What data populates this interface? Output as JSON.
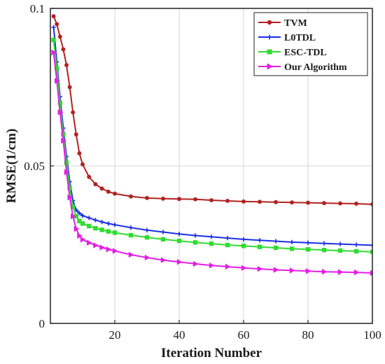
{
  "chart_data": {
    "type": "line",
    "title": "",
    "xlabel": "Iteration Number",
    "ylabel": "RMSE(1/cm)",
    "xlim": [
      0,
      100
    ],
    "ylim": [
      0,
      0.1
    ],
    "x_ticks": [
      20,
      40,
      60,
      80,
      100
    ],
    "x_tick_labels": [
      "20",
      "40",
      "60",
      "80",
      "100"
    ],
    "y_ticks": [
      0,
      0.05,
      0.1
    ],
    "y_tick_labels": [
      "0",
      "0.05",
      "0.1"
    ],
    "grid": true,
    "legend_position": "top-right",
    "series": [
      {
        "name": "TVM",
        "color": "#b22222",
        "marker": "circle",
        "x": [
          1,
          2,
          3,
          4,
          5,
          6,
          7,
          8,
          9,
          10,
          12,
          14,
          16,
          18,
          20,
          25,
          30,
          35,
          40,
          45,
          50,
          55,
          60,
          65,
          70,
          75,
          80,
          85,
          90,
          95,
          100
        ],
        "y": [
          0.0975,
          0.095,
          0.091,
          0.087,
          0.082,
          0.075,
          0.067,
          0.06,
          0.054,
          0.0505,
          0.0465,
          0.0442,
          0.0428,
          0.0418,
          0.0412,
          0.0403,
          0.0398,
          0.0396,
          0.0395,
          0.0394,
          0.0391,
          0.0389,
          0.0387,
          0.0386,
          0.0385,
          0.0384,
          0.0383,
          0.0382,
          0.0381,
          0.038,
          0.0378
        ]
      },
      {
        "name": "L0TDL",
        "color": "#1a2ee8",
        "marker": "plus",
        "x": [
          1,
          2,
          3,
          4,
          5,
          6,
          7,
          8,
          9,
          10,
          12,
          14,
          16,
          18,
          20,
          25,
          30,
          35,
          40,
          45,
          50,
          55,
          60,
          65,
          70,
          75,
          80,
          85,
          90,
          95,
          100
        ],
        "y": [
          0.094,
          0.083,
          0.072,
          0.062,
          0.053,
          0.045,
          0.039,
          0.036,
          0.035,
          0.0342,
          0.0335,
          0.0328,
          0.0322,
          0.0317,
          0.0313,
          0.0304,
          0.0296,
          0.029,
          0.0284,
          0.0279,
          0.0275,
          0.0271,
          0.0267,
          0.0264,
          0.0261,
          0.0258,
          0.0256,
          0.0254,
          0.0252,
          0.025,
          0.0248
        ]
      },
      {
        "name": "ESC-TDL",
        "color": "#2fdc2f",
        "marker": "square",
        "x": [
          1,
          2,
          3,
          4,
          5,
          6,
          7,
          8,
          9,
          10,
          12,
          14,
          16,
          18,
          20,
          25,
          30,
          35,
          40,
          45,
          50,
          55,
          60,
          65,
          70,
          75,
          80,
          85,
          90,
          95,
          100
        ],
        "y": [
          0.09,
          0.081,
          0.07,
          0.06,
          0.051,
          0.043,
          0.037,
          0.034,
          0.0325,
          0.0317,
          0.0309,
          0.0302,
          0.0297,
          0.0292,
          0.0288,
          0.028,
          0.0273,
          0.0267,
          0.0262,
          0.0257,
          0.0253,
          0.0249,
          0.0246,
          0.0243,
          0.024,
          0.0237,
          0.0235,
          0.0233,
          0.0231,
          0.0229,
          0.0227
        ]
      },
      {
        "name": "Our Algorithm",
        "color": "#e51ee5",
        "marker": "triangle-right",
        "x": [
          1,
          2,
          3,
          4,
          5,
          6,
          7,
          8,
          9,
          10,
          12,
          14,
          16,
          18,
          20,
          25,
          30,
          35,
          40,
          45,
          50,
          55,
          60,
          65,
          70,
          75,
          80,
          85,
          90,
          95,
          100
        ],
        "y": [
          0.086,
          0.077,
          0.067,
          0.058,
          0.048,
          0.04,
          0.034,
          0.03,
          0.0278,
          0.0266,
          0.0256,
          0.0248,
          0.0241,
          0.0235,
          0.023,
          0.0218,
          0.0209,
          0.0201,
          0.0195,
          0.0189,
          0.0184,
          0.018,
          0.0176,
          0.0173,
          0.017,
          0.0168,
          0.0166,
          0.0164,
          0.0163,
          0.0162,
          0.016
        ]
      }
    ]
  }
}
